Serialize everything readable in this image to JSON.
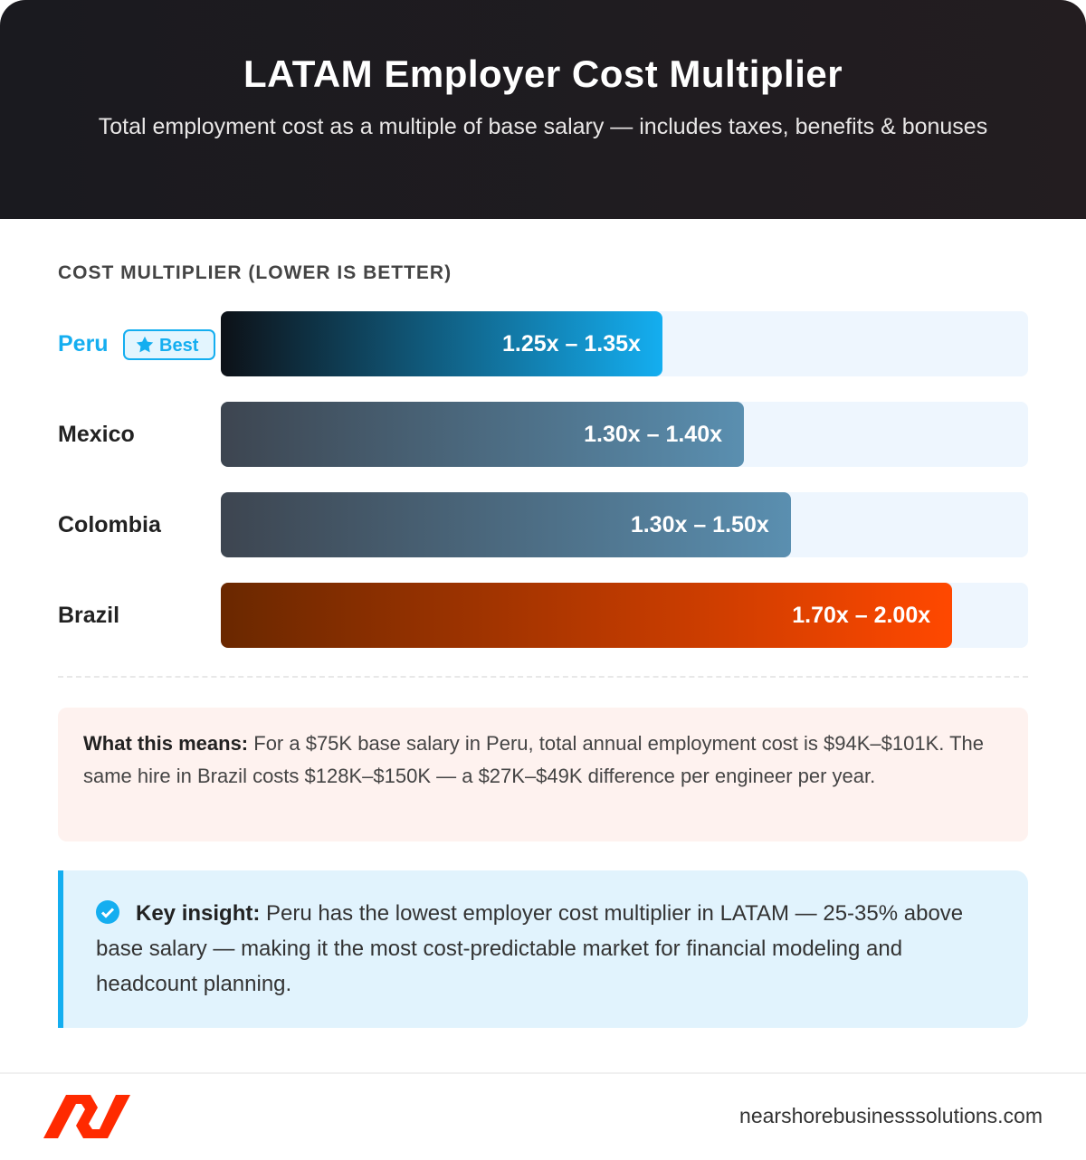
{
  "header": {
    "title": "LATAM Employer Cost Multiplier",
    "subtitle": "Total employment cost as a multiple of base salary — includes taxes, benefits & bonuses"
  },
  "chart_data": {
    "type": "bar",
    "orientation": "horizontal",
    "title": "COST MULTIPLIER (LOWER IS BETTER)",
    "categories": [
      "Peru",
      "Mexico",
      "Colombia",
      "Brazil"
    ],
    "ranges": [
      [
        1.25,
        1.35
      ],
      [
        1.3,
        1.4
      ],
      [
        1.3,
        1.5
      ],
      [
        1.7,
        2.0
      ]
    ],
    "labels": [
      "1.25x – 1.35x",
      "1.30x – 1.40x",
      "1.30x – 1.50x",
      "1.70x – 2.00x"
    ],
    "fill_percent": [
      54.7,
      64.8,
      70.6,
      90.6
    ],
    "badge": {
      "category": "Peru",
      "label": "Best",
      "icon": "star-icon"
    },
    "colors": {
      "peru": [
        "#0d1117",
        "#14aef0"
      ],
      "neutral": [
        "#3d4550",
        "#5a8fb0"
      ],
      "brazil": [
        "#6a2800",
        "#ff4800"
      ],
      "track": "#eef6fe",
      "accent": "#14aef0"
    }
  },
  "means": {
    "label": "What this means:",
    "text": " For a $75K base salary in Peru, total annual employment cost is $94K–$101K. The same hire in Brazil costs $128K–$150K — a $27K–$49K difference per engineer per year."
  },
  "insight": {
    "icon": "check-circle-icon",
    "label": "Key insight:",
    "text": " Peru has the lowest employer cost multiplier in LATAM — 25-35% above base salary — making it the most cost-predictable market for financial modeling and headcount planning."
  },
  "footer": {
    "site": "nearshorebusinesssolutions.com",
    "logo_color": "#ff2a00"
  }
}
